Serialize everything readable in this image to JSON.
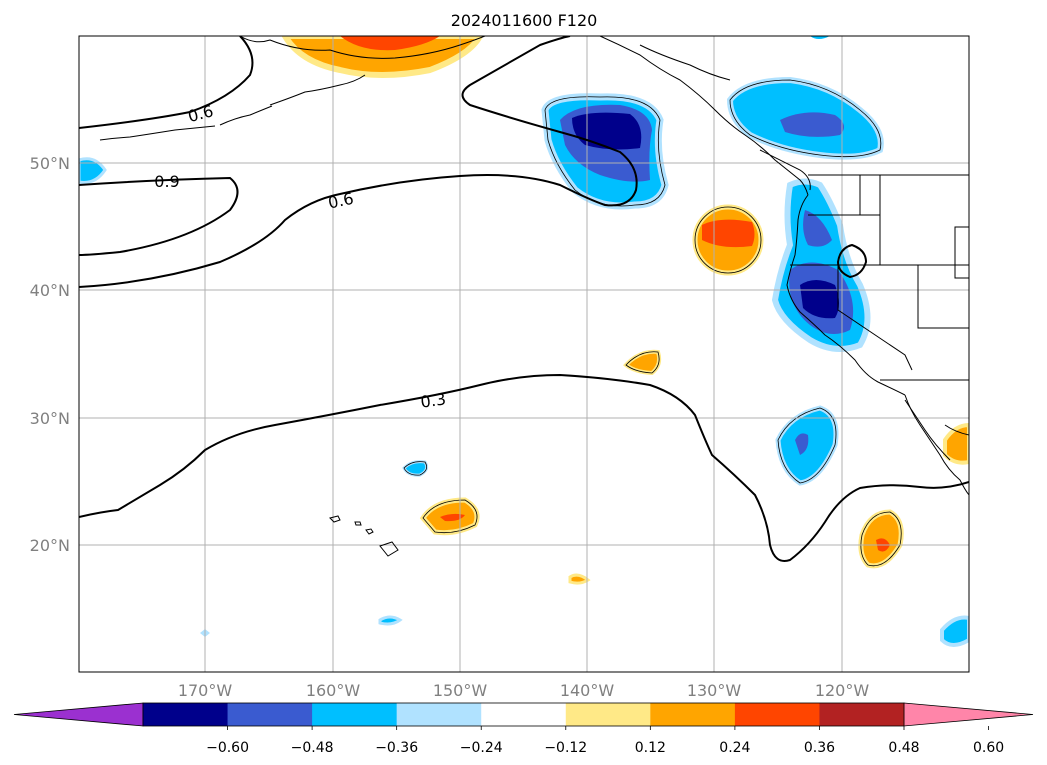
{
  "title": "2024011600 F120",
  "lat_labels": [
    "50°N",
    "40°N",
    "30°N",
    "20°N"
  ],
  "lon_labels": [
    "170°W",
    "160°W",
    "150°W",
    "140°W",
    "130°W",
    "120°W"
  ],
  "contour_labels": [
    "0.6",
    "0.9",
    "0.6",
    "0.3"
  ],
  "colorbar": {
    "ticks": [
      "−0.60",
      "−0.48",
      "−0.36",
      "−0.24",
      "−0.12",
      "0.12",
      "0.24",
      "0.36",
      "0.48",
      "0.60"
    ],
    "colors": [
      "#9b30d0",
      "#00008b",
      "#3a5bd0",
      "#00bfff",
      "#b0e2ff",
      "#ffffff",
      "#ffe987",
      "#ffa500",
      "#ff4500",
      "#b22222",
      "#ff85a9"
    ]
  }
}
